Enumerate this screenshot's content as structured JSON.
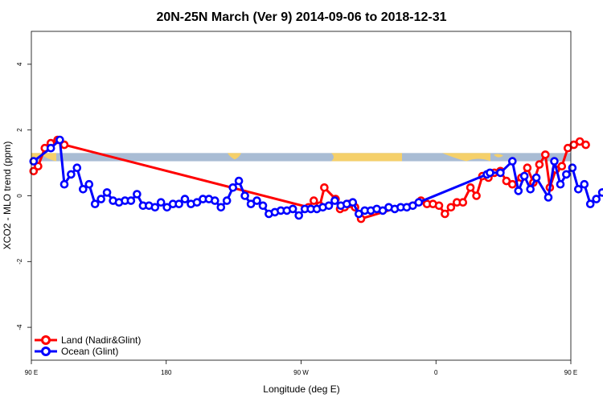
{
  "chart_data": {
    "type": "line",
    "title": "20N-25N March (Ver 9)   2014-09-06 to 2018-12-31",
    "xlabel": "Longitude (deg E)",
    "ylabel": "XCO2 - MLO trend (ppm)",
    "xlim": [
      90,
      450
    ],
    "ylim": [
      -5,
      5
    ],
    "x_ticks": [
      {
        "value": 90,
        "label": "90 E"
      },
      {
        "value": 180,
        "label": "180"
      },
      {
        "value": 270,
        "label": "90 W"
      },
      {
        "value": 360,
        "label": "0"
      },
      {
        "value": 450,
        "label": "90 E"
      },
      {
        "value": 540,
        "label": "180"
      }
    ],
    "y_ticks": [
      -4,
      -2,
      0,
      2,
      4
    ],
    "grid": false,
    "legend_position": "bottom-left",
    "map_strip": {
      "y_min": 1.05,
      "y_max": 1.3,
      "ocean_color": "#a9bcd4",
      "land_color": "#f5d06a"
    },
    "series": [
      {
        "name": "Land (Nadir&Glint)",
        "color": "#ff0000",
        "points": [
          [
            91.5,
            0.75
          ],
          [
            94.5,
            0.9
          ],
          [
            99,
            1.45
          ],
          [
            103,
            1.6
          ],
          [
            107.5,
            1.7
          ],
          [
            112,
            1.55
          ],
          [
            275,
            -0.35
          ],
          [
            278.5,
            -0.15
          ],
          [
            282.5,
            -0.3
          ],
          [
            285.5,
            0.25
          ],
          [
            293,
            -0.1
          ],
          [
            296,
            -0.4
          ],
          [
            299,
            -0.35
          ],
          [
            302,
            -0.25
          ],
          [
            306,
            -0.35
          ],
          [
            310,
            -0.7
          ],
          [
            350,
            -0.15
          ],
          [
            354,
            -0.25
          ],
          [
            358,
            -0.25
          ],
          [
            362,
            -0.3
          ],
          [
            366,
            -0.55
          ],
          [
            370,
            -0.35
          ],
          [
            374,
            -0.2
          ],
          [
            378,
            -0.2
          ],
          [
            383,
            0.25
          ],
          [
            387,
            0.0
          ],
          [
            391,
            0.6
          ],
          [
            395,
            0.55
          ],
          [
            399,
            0.7
          ],
          [
            403,
            0.75
          ],
          [
            407,
            0.45
          ],
          [
            411,
            0.35
          ],
          [
            417,
            0.55
          ],
          [
            421,
            0.85
          ],
          [
            425,
            0.4
          ],
          [
            429,
            0.95
          ],
          [
            433,
            1.25
          ],
          [
            436,
            0.25
          ],
          [
            440,
            0.8
          ],
          [
            444,
            0.9
          ],
          [
            448,
            1.45
          ],
          [
            452,
            1.55
          ],
          [
            456,
            1.65
          ],
          [
            460,
            1.55
          ]
        ]
      },
      {
        "name": "Ocean (Glint)",
        "color": "#0000ff",
        "points": [
          [
            91.5,
            1.05
          ],
          [
            103,
            1.45
          ],
          [
            109,
            1.7
          ],
          [
            112,
            0.35
          ],
          [
            116.5,
            0.65
          ],
          [
            120.5,
            0.85
          ],
          [
            124.5,
            0.2
          ],
          [
            128.5,
            0.35
          ],
          [
            132.5,
            -0.25
          ],
          [
            136.5,
            -0.1
          ],
          [
            140.5,
            0.1
          ],
          [
            144.5,
            -0.15
          ],
          [
            148.5,
            -0.2
          ],
          [
            152.5,
            -0.15
          ],
          [
            156.5,
            -0.15
          ],
          [
            160.5,
            0.05
          ],
          [
            164.5,
            -0.3
          ],
          [
            168.5,
            -0.3
          ],
          [
            172.5,
            -0.35
          ],
          [
            176.5,
            -0.2
          ],
          [
            180.5,
            -0.35
          ],
          [
            184.5,
            -0.25
          ],
          [
            188.5,
            -0.25
          ],
          [
            192.5,
            -0.1
          ],
          [
            196.5,
            -0.25
          ],
          [
            200.5,
            -0.2
          ],
          [
            204.5,
            -0.1
          ],
          [
            208.5,
            -0.1
          ],
          [
            212.5,
            -0.15
          ],
          [
            216.5,
            -0.35
          ],
          [
            220.5,
            -0.15
          ],
          [
            224.5,
            0.25
          ],
          [
            228.5,
            0.45
          ],
          [
            232.5,
            0.0
          ],
          [
            236.5,
            -0.25
          ],
          [
            240.5,
            -0.15
          ],
          [
            244.5,
            -0.3
          ],
          [
            248.5,
            -0.55
          ],
          [
            252.5,
            -0.5
          ],
          [
            256.5,
            -0.45
          ],
          [
            260.5,
            -0.45
          ],
          [
            264.5,
            -0.4
          ],
          [
            268.5,
            -0.6
          ],
          [
            272.5,
            -0.4
          ],
          [
            276.5,
            -0.4
          ],
          [
            280.5,
            -0.4
          ],
          [
            284.5,
            -0.35
          ],
          [
            288.5,
            -0.3
          ],
          [
            292.5,
            -0.15
          ],
          [
            296.5,
            -0.3
          ],
          [
            300.5,
            -0.25
          ],
          [
            304.5,
            -0.2
          ],
          [
            308.5,
            -0.55
          ],
          [
            312.5,
            -0.45
          ],
          [
            316.5,
            -0.45
          ],
          [
            320.5,
            -0.4
          ],
          [
            324.5,
            -0.45
          ],
          [
            328.5,
            -0.35
          ],
          [
            332.5,
            -0.4
          ],
          [
            336.5,
            -0.35
          ],
          [
            340.5,
            -0.35
          ],
          [
            344.5,
            -0.3
          ],
          [
            348.5,
            -0.2
          ],
          [
            394,
            0.65
          ],
          [
            396,
            0.7
          ],
          [
            403,
            0.7
          ],
          [
            411,
            1.05
          ],
          [
            415,
            0.15
          ],
          [
            419,
            0.6
          ],
          [
            423,
            0.2
          ],
          [
            427,
            0.55
          ],
          [
            435,
            -0.05
          ],
          [
            439,
            1.05
          ],
          [
            443,
            0.35
          ],
          [
            447,
            0.65
          ],
          [
            451,
            0.85
          ],
          [
            455,
            0.2
          ],
          [
            459,
            0.35
          ],
          [
            463,
            -0.25
          ],
          [
            467,
            -0.1
          ],
          [
            471,
            0.1
          ],
          [
            475,
            -0.2
          ],
          [
            479,
            -0.25
          ],
          [
            483,
            -0.2
          ],
          [
            487,
            -0.2
          ],
          [
            491,
            0.05
          ]
        ]
      }
    ]
  }
}
